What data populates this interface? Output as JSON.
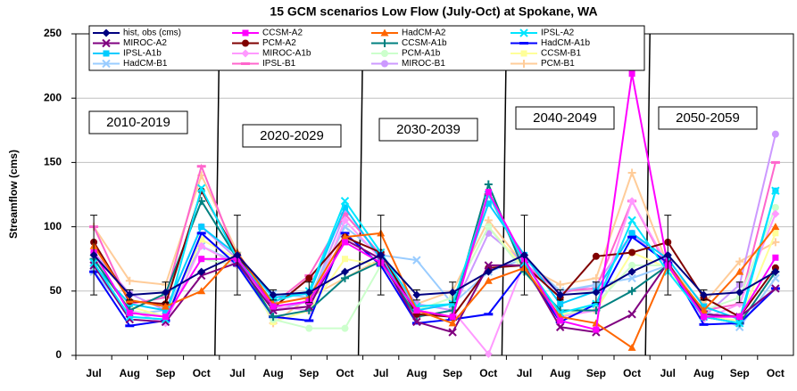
{
  "chart_data": {
    "type": "line",
    "title": "15 GCM scenarios Low Flow (July-Oct) at Spokane, WA",
    "y_label": "Streamflow (cms)",
    "categories": [
      "Jul",
      "Aug",
      "Sep",
      "Oct",
      "Jul",
      "Aug",
      "Sep",
      "Oct",
      "Jul",
      "Aug",
      "Sep",
      "Oct",
      "Jul",
      "Aug",
      "Sep",
      "Oct",
      "Jul",
      "Aug",
      "Sep",
      "Oct"
    ],
    "annotations": [
      "2010-2019",
      "2020-2029",
      "2030-2039",
      "2040-2049",
      "2050-2059"
    ],
    "ylim": [
      0,
      250
    ],
    "yticks": [
      0,
      50,
      100,
      150,
      200,
      250
    ],
    "grid": true,
    "series": [
      {
        "name": "hist, obs (cms)",
        "color": "#000080",
        "marker": "diamond",
        "values": [
          78,
          47,
          49,
          65,
          78,
          47,
          49,
          65,
          78,
          47,
          49,
          65,
          78,
          47,
          49,
          65,
          78,
          47,
          49,
          65
        ],
        "errors": [
          31,
          4,
          8,
          null,
          31,
          4,
          8,
          null,
          31,
          4,
          8,
          null,
          31,
          4,
          8,
          null,
          31,
          4,
          8,
          null
        ]
      },
      {
        "name": "CCSM-A2",
        "color": "#ff00ff",
        "marker": "square",
        "values": [
          80,
          33,
          30,
          75,
          75,
          38,
          42,
          88,
          72,
          35,
          30,
          127,
          75,
          27,
          20,
          219,
          70,
          30,
          30,
          76
        ]
      },
      {
        "name": "HadCM-A2",
        "color": "#ff6600",
        "marker": "triangle",
        "values": [
          85,
          43,
          38,
          50,
          80,
          40,
          45,
          92,
          95,
          35,
          25,
          58,
          68,
          30,
          25,
          6,
          70,
          35,
          65,
          100
        ]
      },
      {
        "name": "IPSL-A2",
        "color": "#00e5ff",
        "marker": "x",
        "values": [
          72,
          30,
          28,
          130,
          75,
          42,
          50,
          120,
          80,
          38,
          40,
          125,
          72,
          33,
          40,
          105,
          65,
          30,
          25,
          128
        ]
      },
      {
        "name": "MIROC-A2",
        "color": "#800080",
        "marker": "x",
        "values": [
          70,
          28,
          26,
          62,
          72,
          35,
          38,
          90,
          75,
          26,
          18,
          70,
          70,
          22,
          18,
          32,
          72,
          32,
          30,
          52
        ]
      },
      {
        "name": "PCM-A2",
        "color": "#800000",
        "marker": "circle",
        "values": [
          88,
          42,
          40,
          128,
          78,
          37,
          60,
          92,
          80,
          32,
          30,
          68,
          70,
          45,
          77,
          80,
          88,
          45,
          30,
          68
        ]
      },
      {
        "name": "CCSM-A1b",
        "color": "#008080",
        "marker": "plus",
        "values": [
          75,
          35,
          48,
          120,
          75,
          30,
          35,
          60,
          73,
          30,
          35,
          133,
          65,
          35,
          35,
          50,
          70,
          30,
          25,
          65
        ]
      },
      {
        "name": "HadCM-A1b",
        "color": "#0000ff",
        "marker": "dash",
        "values": [
          65,
          23,
          27,
          95,
          70,
          30,
          27,
          95,
          70,
          25,
          28,
          32,
          68,
          26,
          40,
          92,
          72,
          24,
          25,
          52
        ]
      },
      {
        "name": "IPSL-A1b",
        "color": "#00ccff",
        "marker": "square",
        "values": [
          70,
          40,
          35,
          100,
          78,
          45,
          48,
          115,
          75,
          35,
          40,
          118,
          78,
          40,
          50,
          95,
          75,
          38,
          28,
          128
        ]
      },
      {
        "name": "MIROC-A1b",
        "color": "#ff99ff",
        "marker": "diamond",
        "values": [
          75,
          35,
          25,
          85,
          70,
          38,
          35,
          105,
          75,
          30,
          35,
          1,
          72,
          30,
          35,
          120,
          70,
          28,
          40,
          110
        ]
      },
      {
        "name": "PCM-A1b",
        "color": "#ccffcc",
        "marker": "circle",
        "values": [
          78,
          35,
          30,
          75,
          70,
          28,
          21,
          21,
          70,
          35,
          45,
          100,
          65,
          30,
          40,
          70,
          70,
          35,
          45,
          115
        ]
      },
      {
        "name": "CCSM-B1",
        "color": "#ffff99",
        "marker": "square",
        "values": [
          70,
          38,
          30,
          90,
          75,
          26,
          35,
          75,
          70,
          35,
          45,
          100,
          68,
          32,
          35,
          80,
          68,
          30,
          27,
          95
        ]
      },
      {
        "name": "HadCM-B1",
        "color": "#99ccff",
        "marker": "x",
        "values": [
          65,
          32,
          35,
          85,
          72,
          48,
          45,
          100,
          78,
          74,
          40,
          65,
          75,
          50,
          55,
          60,
          70,
          35,
          22,
          60
        ]
      },
      {
        "name": "IPSL-B1",
        "color": "#ff66cc",
        "marker": "dash",
        "values": [
          100,
          40,
          45,
          147,
          75,
          40,
          62,
          110,
          78,
          35,
          30,
          125,
          70,
          50,
          52,
          120,
          68,
          35,
          40,
          150
        ]
      },
      {
        "name": "MIROC-B1",
        "color": "#cc99ff",
        "marker": "circle",
        "values": [
          80,
          48,
          35,
          100,
          75,
          35,
          42,
          110,
          78,
          40,
          35,
          95,
          72,
          48,
          55,
          95,
          70,
          30,
          55,
          172
        ]
      },
      {
        "name": "PCM-B1",
        "color": "#ffcc99",
        "marker": "plus",
        "values": [
          100,
          58,
          55,
          140,
          80,
          25,
          45,
          60,
          75,
          40,
          50,
          105,
          70,
          55,
          60,
          142,
          70,
          40,
          73,
          88
        ]
      }
    ]
  }
}
